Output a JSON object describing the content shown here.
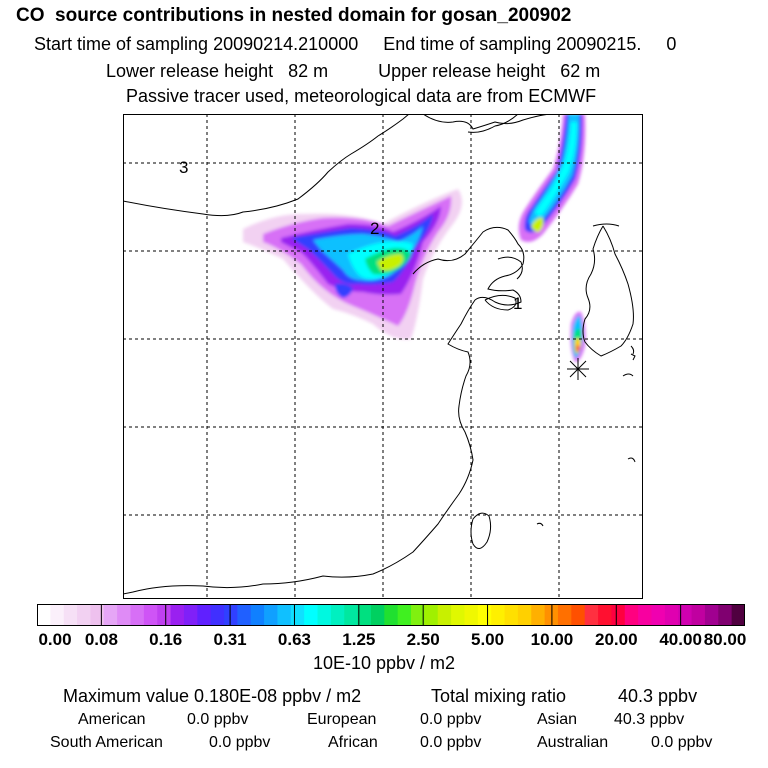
{
  "header": {
    "title": "CO  source contributions in nested domain for gosan_200902",
    "line2": "Start time of sampling 20090214.210000     End time of sampling 20090215.     0",
    "line3": "Lower release height   82 m          Upper release height   62 m",
    "line4": "Passive tracer used, meteorological data are from ECMWF"
  },
  "map": {
    "region_labels": [
      "1",
      "2",
      "3"
    ],
    "receptor_symbol": "asterisk",
    "grid": "dashed",
    "coastline_color": "#000000"
  },
  "colorbar": {
    "tick_labels": [
      "0.00",
      "0.08",
      "0.16",
      "0.31",
      "0.63",
      "1.25",
      "2.50",
      "5.00",
      "10.00",
      "20.00",
      "40.00",
      "80.00"
    ],
    "unit_label": "10E-10 ppbv / m2",
    "colors": [
      "#ffffff",
      "#fbf0fb",
      "#f6e0f6",
      "#f2d1f2",
      "#eec1ee",
      "#e6a6f6",
      "#df8bf6",
      "#d76ff6",
      "#cf54f6",
      "#c040f0",
      "#9a20f0",
      "#8020f8",
      "#6020ff",
      "#4030ff",
      "#3040ff",
      "#2060ff",
      "#1080ff",
      "#10a0ff",
      "#10c0ff",
      "#10e0ff",
      "#00ffff",
      "#00f8e0",
      "#00f0c0",
      "#00e8a0",
      "#00e080",
      "#00d060",
      "#20e030",
      "#40f020",
      "#80f010",
      "#a0f000",
      "#c8f000",
      "#e0f800",
      "#f0f800",
      "#ffff00",
      "#fff000",
      "#ffe000",
      "#ffd000",
      "#ffb000",
      "#ff9000",
      "#ff7000",
      "#ff5000",
      "#ff3040",
      "#ff1030",
      "#ff0040",
      "#ff0080",
      "#f800a0",
      "#f000b0",
      "#e000b0",
      "#d000b0",
      "#c000a0",
      "#a00090",
      "#800070",
      "#500040"
    ]
  },
  "footer": {
    "max_label": "Maximum value  0.180E-08 ppbv / m2",
    "total_label": "Total mixing ratio",
    "total_value": "40.3 ppbv",
    "regions": [
      {
        "name": "American",
        "value": "0.0 ppbv"
      },
      {
        "name": "European",
        "value": "0.0 ppbv"
      },
      {
        "name": "Asian",
        "value": "40.3 ppbv"
      },
      {
        "name": "South American",
        "value": "0.0 ppbv"
      },
      {
        "name": "African",
        "value": "0.0 ppbv"
      },
      {
        "name": "Australian",
        "value": "0.0 ppbv"
      }
    ]
  }
}
